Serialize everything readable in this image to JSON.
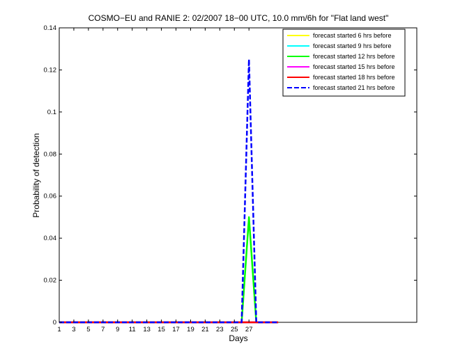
{
  "chart_data": {
    "type": "line",
    "title": "COSMO−EU and RANIE 2: 02/2007 18−00 UTC, 10.0 mm/6h for \"Flat land west\"",
    "xlabel": "Days",
    "ylabel": "Probability of detection",
    "xlim": [
      1,
      50
    ],
    "ylim": [
      0,
      0.14
    ],
    "xticks": [
      1,
      3,
      5,
      7,
      9,
      11,
      13,
      15,
      17,
      19,
      21,
      23,
      25,
      27
    ],
    "yticks": [
      0,
      0.02,
      0.04,
      0.06,
      0.08,
      0.1,
      0.12,
      0.14
    ],
    "ytick_labels": [
      "0",
      "0.02",
      "0.04",
      "0.06",
      "0.08",
      "0.1",
      "0.12",
      "0.14"
    ],
    "legend_position": "top-right",
    "grid": false,
    "x": [
      1,
      2,
      3,
      4,
      5,
      6,
      7,
      8,
      9,
      10,
      11,
      12,
      13,
      14,
      15,
      16,
      17,
      18,
      19,
      20,
      21,
      22,
      23,
      24,
      25,
      26,
      27,
      28,
      29,
      30,
      31
    ],
    "series": [
      {
        "name": "forecast started 6 hrs before",
        "color": "#ffff00",
        "dashed": false,
        "values": [
          0,
          0,
          0,
          0,
          0,
          0,
          0,
          0,
          0,
          0,
          0,
          0,
          0,
          0,
          0,
          0,
          0,
          0,
          0,
          0,
          0,
          0,
          0,
          0,
          0,
          0,
          0,
          0,
          0,
          0,
          0
        ]
      },
      {
        "name": "forecast started 9 hrs before",
        "color": "#00ffff",
        "dashed": false,
        "values": [
          0,
          0,
          0,
          0,
          0,
          0,
          0,
          0,
          0,
          0,
          0,
          0,
          0,
          0,
          0,
          0,
          0,
          0,
          0,
          0,
          0,
          0,
          0,
          0,
          0,
          0,
          0,
          0,
          0,
          0,
          0
        ]
      },
      {
        "name": "forecast started 12 hrs before",
        "color": "#00ff00",
        "dashed": false,
        "values": [
          0,
          0,
          0,
          0,
          0,
          0,
          0,
          0,
          0,
          0,
          0,
          0,
          0,
          0,
          0,
          0,
          0,
          0,
          0,
          0,
          0,
          0,
          0,
          0,
          0,
          0,
          0.05,
          0,
          0,
          0,
          0
        ]
      },
      {
        "name": "forecast started 15 hrs before",
        "color": "#ff00ff",
        "dashed": false,
        "values": [
          0,
          0,
          0,
          0,
          0,
          0,
          0,
          0,
          0,
          0,
          0,
          0,
          0,
          0,
          0,
          0,
          0,
          0,
          0,
          0,
          0,
          0,
          0,
          0,
          0,
          0,
          0,
          0,
          0,
          0,
          0
        ]
      },
      {
        "name": "forecast started 18 hrs before",
        "color": "#ff0000",
        "dashed": false,
        "values": [
          0,
          0,
          0,
          0,
          0,
          0,
          0,
          0,
          0,
          0,
          0,
          0,
          0,
          0,
          0,
          0,
          0,
          0,
          0,
          0,
          0,
          0,
          0,
          0,
          0,
          0,
          0,
          0,
          0,
          0,
          0
        ]
      },
      {
        "name": "forecast started 21 hrs before",
        "color": "#0000ff",
        "dashed": true,
        "values": [
          0,
          0,
          0,
          0,
          0,
          0,
          0,
          0,
          0,
          0,
          0,
          0,
          0,
          0,
          0,
          0,
          0,
          0,
          0,
          0,
          0,
          0,
          0,
          0,
          0,
          0,
          0.125,
          0,
          0,
          0,
          0
        ]
      }
    ]
  }
}
